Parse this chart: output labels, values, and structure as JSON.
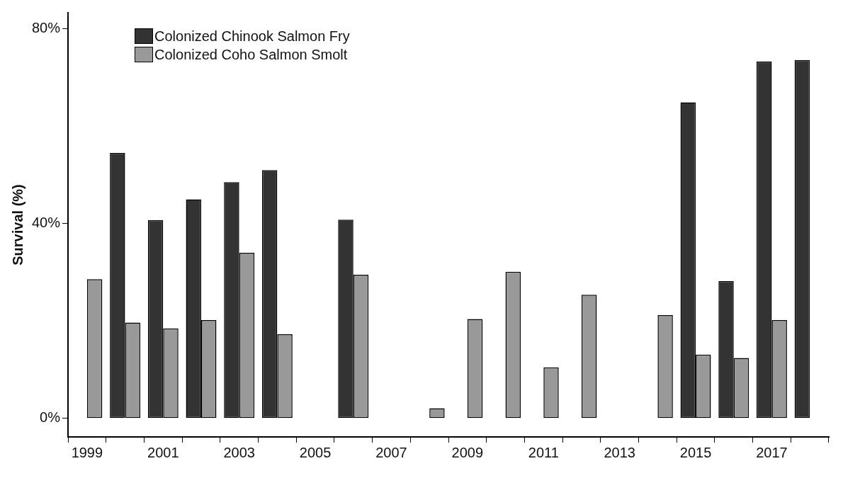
{
  "chart_data": {
    "type": "bar",
    "ylabel": "Survival (%)",
    "categories": [
      "1999",
      null,
      "2001",
      null,
      "2003",
      null,
      "2005",
      null,
      "2007",
      null,
      "2009",
      null,
      "2011",
      null,
      "2013",
      null,
      "2015",
      null,
      "2017",
      null
    ],
    "series": [
      {
        "name": "Colonized Chinook Salmon Fry",
        "color": "#333333",
        "values": [
          null,
          54.5,
          40.7,
          45.0,
          48.5,
          51.0,
          null,
          40.8,
          null,
          null,
          null,
          null,
          null,
          null,
          null,
          null,
          64.9,
          28.2,
          73.3,
          73.6
        ]
      },
      {
        "name": "Colonized Coho Salmon Smolt",
        "color": "#999999",
        "values": [
          28.6,
          19.7,
          18.5,
          20.2,
          34.0,
          17.3,
          0,
          29.5,
          0,
          2.1,
          20.4,
          30.1,
          10.5,
          25.4,
          0,
          21.2,
          13.1,
          12.4,
          20.2,
          null
        ]
      }
    ],
    "ylim": [
      -3.8,
      83.3
    ],
    "yticks": [
      {
        "value": 0,
        "label": "0%"
      },
      {
        "value": 40,
        "label": "40%"
      },
      {
        "value": 80,
        "label": "80%"
      }
    ],
    "grid": false,
    "legend": "top left"
  }
}
